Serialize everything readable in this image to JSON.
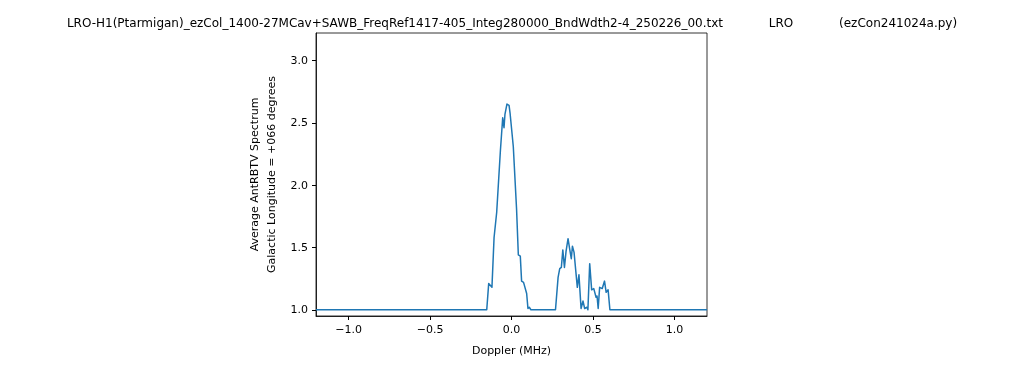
{
  "chart_data": {
    "type": "line",
    "title": "LRO-H1(Ptarmigan)_ezCol_1400-27MCav+SAWB_FreqRef1417-405_Integ280000_BndWdth2-4_250226_00.txt            LRO            (ezCon241024a.py)",
    "xlabel": "Doppler (MHz)",
    "ylabel": "Average AntRBTV Spectrum\nGalactic Longitude = +066 degrees",
    "series": [
      {
        "color": "#1f77b4",
        "x": [
          -1.2,
          -0.152,
          -0.14,
          -0.12,
          -0.107,
          -0.091,
          -0.068,
          -0.054,
          -0.046,
          -0.04,
          -0.028,
          -0.015,
          -0.009,
          0.011,
          0.031,
          0.042,
          0.054,
          0.062,
          0.074,
          0.093,
          0.101,
          0.109,
          0.119,
          0.27,
          0.286,
          0.296,
          0.306,
          0.315,
          0.325,
          0.335,
          0.347,
          0.358,
          0.367,
          0.374,
          0.384,
          0.404,
          0.414,
          0.427,
          0.439,
          0.449,
          0.463,
          0.469,
          0.48,
          0.492,
          0.505,
          0.519,
          0.525,
          0.532,
          0.541,
          0.557,
          0.571,
          0.581,
          0.593,
          0.604,
          1.2
        ],
        "values": [
          1.0,
          1.0,
          1.21,
          1.18,
          1.58,
          1.78,
          2.28,
          2.54,
          2.46,
          2.57,
          2.65,
          2.64,
          2.58,
          2.31,
          1.81,
          1.44,
          1.43,
          1.23,
          1.22,
          1.13,
          1.01,
          1.02,
          1.0,
          1.0,
          1.26,
          1.33,
          1.34,
          1.48,
          1.34,
          1.47,
          1.57,
          1.48,
          1.41,
          1.51,
          1.46,
          1.18,
          1.28,
          1.01,
          1.07,
          1.01,
          1.02,
          1.0,
          1.37,
          1.16,
          1.17,
          1.1,
          1.11,
          1.01,
          1.18,
          1.17,
          1.23,
          1.14,
          1.16,
          1.0,
          1.0
        ]
      }
    ],
    "xlim": [
      -1.2,
      1.2
    ],
    "xticks": [
      {
        "value": -1,
        "label": "−1.0"
      },
      {
        "value": -0.5,
        "label": "−0.5"
      },
      {
        "value": 0,
        "label": "0.0"
      },
      {
        "value": 0.5,
        "label": "0.5"
      },
      {
        "value": 1,
        "label": "1.0"
      }
    ],
    "ylim": [
      0.95,
      3.22
    ],
    "yticks": [
      {
        "value": 1,
        "label": "1.0"
      },
      {
        "value": 1.5,
        "label": "1.5"
      },
      {
        "value": 2,
        "label": "2.0"
      },
      {
        "value": 2.5,
        "label": "2.5"
      },
      {
        "value": 3,
        "label": "3.0"
      }
    ],
    "grid": false,
    "marker": "none",
    "line_style": "solid"
  }
}
